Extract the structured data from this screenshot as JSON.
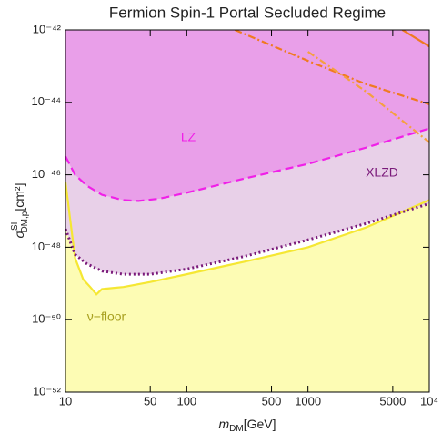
{
  "chart_data": {
    "type": "line",
    "title": "Fermion Spin-1 Portal Secluded Regime",
    "xlabel": {
      "symbol": "m",
      "sub": "DM",
      "unit": "[GeV]"
    },
    "ylabel": {
      "symbol": "σ",
      "sup": "SI",
      "sub": "DM,p",
      "unit": "[cm²]"
    },
    "xscale": "log",
    "yscale": "log",
    "xlim": [
      10,
      10000
    ],
    "ylim": [
      1e-52,
      1e-42
    ],
    "xticks": [
      10,
      50,
      100,
      500,
      1000,
      5000,
      {
        "value": 10000,
        "label": "10⁴"
      }
    ],
    "yticks": [
      {
        "value": 1e-52,
        "label": "10⁻⁵²"
      },
      {
        "value": 1e-50,
        "label": "10⁻⁵⁰"
      },
      {
        "value": 1e-48,
        "label": "10⁻⁴⁸"
      },
      {
        "value": 1e-46,
        "label": "10⁻⁴⁶"
      },
      {
        "value": 1e-44,
        "label": "10⁻⁴⁴"
      },
      {
        "value": 1e-42,
        "label": "10⁻⁴²"
      }
    ],
    "series": [
      {
        "name": "ν−floor",
        "color": "#f5e733",
        "label_color": "#a8a020",
        "fill": "#fdfcb4",
        "fill_to": "bottom",
        "dash": "solid",
        "x": [
          10,
          11,
          12,
          13,
          14,
          16,
          18,
          20,
          30,
          50,
          100,
          300,
          1000,
          3000,
          10000
        ],
        "values": [
          6.3e-47,
          5e-48,
          5e-49,
          2.5e-49,
          1.3e-49,
          8e-50,
          5e-50,
          7e-50,
          8e-50,
          1.1e-49,
          1.8e-49,
          4e-49,
          1e-48,
          3.5e-48,
          2e-47
        ]
      },
      {
        "name": "XLZD",
        "color": "#7a1a7a",
        "label_color": "#7a1a7a",
        "fill": "#e8d0e8",
        "fill_to": "top",
        "dash": "dotted",
        "x": [
          10,
          12,
          15,
          20,
          30,
          50,
          100,
          300,
          1000,
          3000,
          10000
        ],
        "values": [
          3.2e-48,
          6.3e-49,
          3.5e-49,
          2.2e-49,
          1.8e-49,
          1.8e-49,
          2.5e-49,
          5.6e-49,
          1.6e-48,
          4.5e-48,
          1.6e-47
        ]
      },
      {
        "name": "LZ",
        "color": "#f020e8",
        "label_color": "#f020e8",
        "fill": "#e99fe9",
        "fill_to": "top",
        "dash": "dashed",
        "x": [
          10,
          12,
          15,
          20,
          30,
          40,
          60,
          100,
          300,
          1000,
          3000,
          10000
        ],
        "values": [
          3.2e-46,
          1e-46,
          5e-47,
          2.8e-47,
          2e-47,
          1.9e-47,
          2.2e-47,
          3.2e-47,
          7.9e-47,
          2e-46,
          5.6e-46,
          1.9e-45
        ]
      },
      {
        "color": "#f07a20",
        "dash": "dashdot",
        "x": [
          250,
          1000,
          3000,
          10000
        ],
        "values": [
          1e-42,
          1.4e-43,
          3.2e-44,
          8.9e-45
        ]
      },
      {
        "color": "#f5a040",
        "dash": "dashdot",
        "x": [
          1000,
          3000,
          10000
        ],
        "values": [
          2.5e-43,
          2e-44,
          7.9e-46
        ]
      },
      {
        "color": "#f07a20",
        "dash": "solid",
        "x": [
          6000,
          10000
        ],
        "values": [
          1e-42,
          3.5e-43
        ]
      }
    ]
  }
}
